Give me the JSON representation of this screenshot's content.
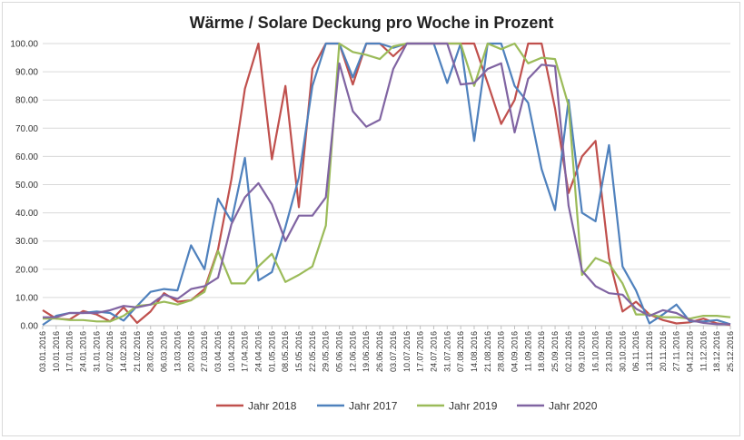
{
  "chart_data": {
    "type": "line",
    "title": "Wärme / Solare Deckung pro Woche in Prozent",
    "xlabel": "",
    "ylabel": "",
    "ylim": [
      0,
      100
    ],
    "yticks": [
      "0.00",
      "10.00",
      "20.00",
      "30.00",
      "40.00",
      "50.00",
      "60.00",
      "70.00",
      "80.00",
      "90.00",
      "100.00"
    ],
    "grid": "horizontal",
    "legend_position": "bottom",
    "x_tick_labels": [
      "03.01.2016",
      "10.01.2016",
      "17.01.2016",
      "24.01.2016",
      "31.01.2016",
      "07.02.2016",
      "14.02.2016",
      "21.02.2016",
      "28.02.2016",
      "06.03.2016",
      "13.03.2016",
      "20.03.2016",
      "27.03.2016",
      "03.04.2016",
      "10.04.2016",
      "17.04.2016",
      "24.04.2016",
      "01.05.2016",
      "08.05.2016",
      "15.05.2016",
      "22.05.2016",
      "29.05.2016",
      "05.06.2016",
      "12.06.2016",
      "19.06.2016",
      "26.06.2016",
      "03.07.2016",
      "10.07.2016",
      "17.07.2016",
      "24.07.2016",
      "31.07.2016",
      "07.08.2016",
      "14.08.2016",
      "21.08.2016",
      "28.08.2016",
      "04.09.2016",
      "11.09.2016",
      "18.09.2016",
      "25.09.2016",
      "02.10.2016",
      "09.10.2016",
      "16.10.2016",
      "23.10.2016",
      "30.10.2016",
      "06.11.2016",
      "13.11.2016",
      "20.11.2016",
      "27.11.2016",
      "04.12.2016",
      "11.12.2016",
      "18.12.2016",
      "25.12.2016"
    ],
    "series": [
      {
        "name": "Jahr 2018",
        "color": "#c0504d",
        "values": [
          5.5,
          2.5,
          2.2,
          5.2,
          4,
          1.5,
          6.5,
          1,
          5,
          11.5,
          8.5,
          9,
          13,
          27,
          52,
          84,
          100,
          59,
          85,
          42,
          91,
          100,
          100,
          85.5,
          100,
          100,
          95.5,
          100,
          100,
          100,
          100,
          100,
          100,
          86,
          71.5,
          80,
          100,
          100,
          77,
          47,
          60,
          65.5,
          24,
          5,
          8.5,
          4,
          2,
          0.8,
          1.2,
          2.5,
          0.8,
          0.3
        ]
      },
      {
        "name": "Jahr 2017",
        "color": "#4f81bd",
        "values": [
          0.3,
          3.5,
          4.5,
          4.5,
          5,
          4.5,
          1.8,
          7,
          12,
          13,
          12.5,
          28.5,
          20,
          45,
          37,
          59.5,
          16,
          19,
          35,
          52.5,
          85,
          100,
          100,
          88,
          100,
          100,
          98.5,
          100,
          100,
          100,
          86,
          100,
          65.5,
          100,
          100,
          85,
          79,
          55.5,
          41,
          80,
          40,
          37,
          64,
          21,
          12.5,
          0.8,
          4,
          7.5,
          1.5,
          1.5,
          2,
          0.5
        ]
      },
      {
        "name": "Jahr 2019",
        "color": "#9bbb59",
        "values": [
          2.5,
          2.5,
          2,
          2,
          1.5,
          1.5,
          3.5,
          7,
          7.5,
          8.5,
          7.5,
          9,
          12,
          26.5,
          15,
          15,
          21,
          25.5,
          15.5,
          18,
          21,
          35.5,
          100,
          97,
          96,
          94.5,
          99,
          100,
          100,
          100,
          100,
          100,
          85,
          100,
          98,
          100,
          93,
          95,
          94.5,
          78,
          18,
          24,
          22,
          15,
          4,
          4,
          3,
          3,
          2.5,
          3.5,
          3.5,
          3
        ]
      },
      {
        "name": "Jahr 2020",
        "color": "#8064a2",
        "values": [
          3,
          3,
          4.5,
          4.5,
          4.5,
          5.5,
          7,
          6.5,
          7.5,
          11,
          9.5,
          13,
          14,
          17,
          36,
          45.5,
          50.5,
          43,
          30,
          39,
          39,
          45.5,
          93,
          76,
          70.5,
          73,
          91,
          100,
          100,
          100,
          100,
          85.5,
          86,
          91,
          93,
          68.5,
          87.5,
          92.5,
          92,
          42.5,
          19.5,
          14,
          11.5,
          11,
          6,
          3.5,
          5.5,
          4.5,
          2,
          1,
          0.5,
          0.5
        ]
      }
    ]
  }
}
